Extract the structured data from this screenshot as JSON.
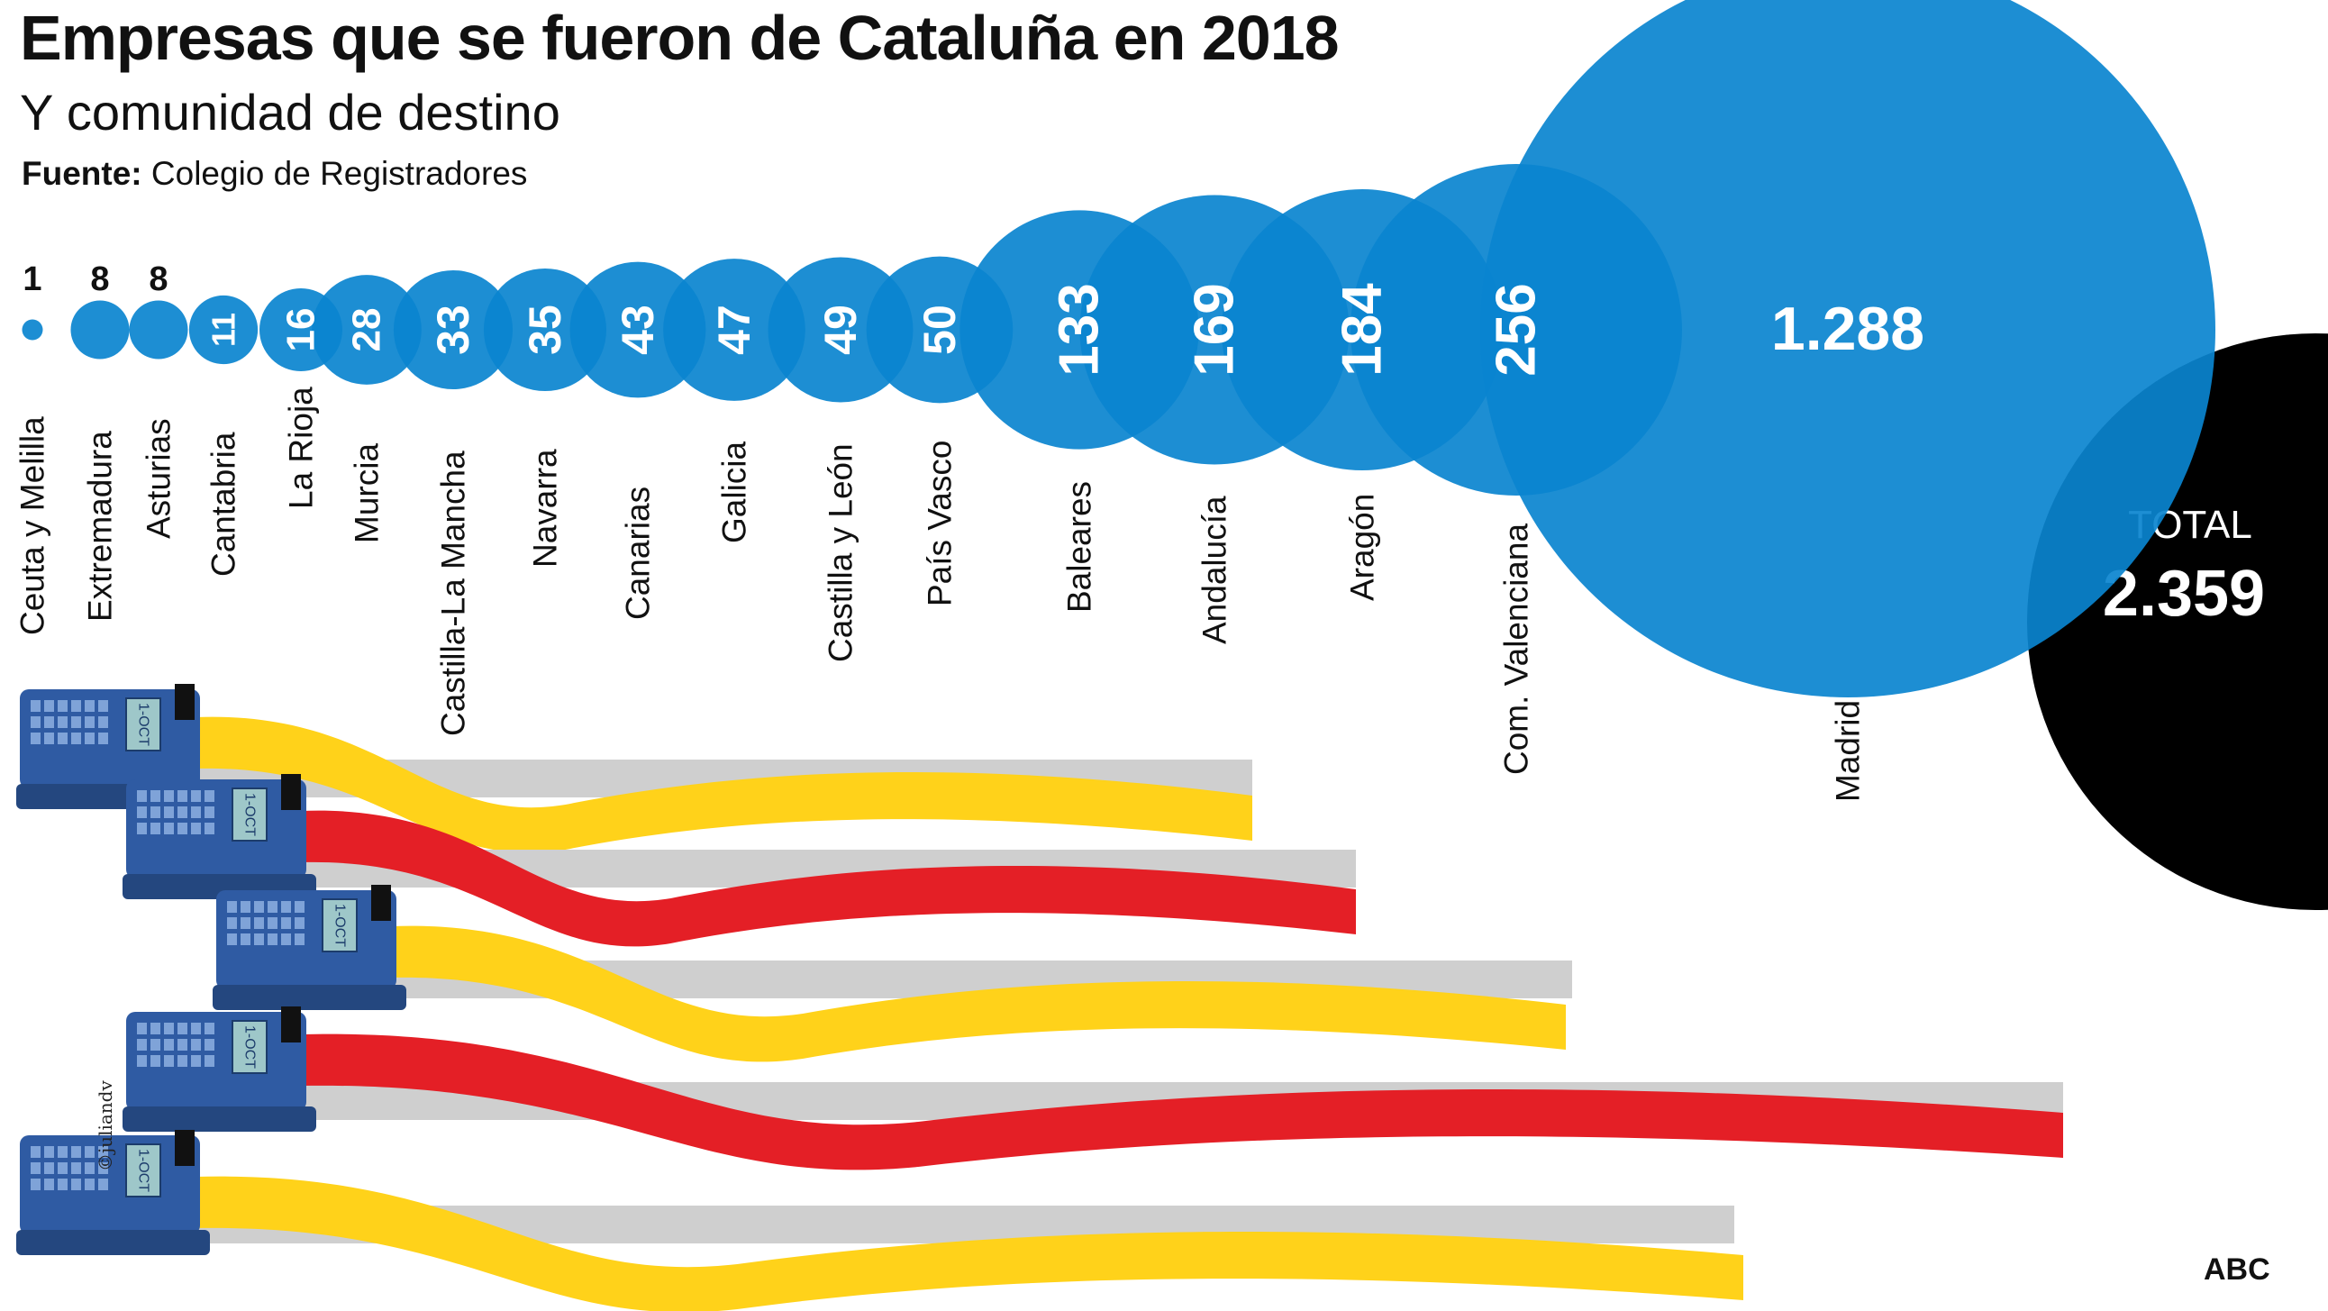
{
  "header": {
    "title": "Empresas que se fueron de Cataluña en 2018",
    "subtitle": "Y comunidad de destino",
    "source_label": "Fuente:",
    "source_text": "Colegio de Registradores"
  },
  "chart_data": {
    "type": "bubble",
    "categories": [
      "Ceuta y Melilla",
      "Extremadura",
      "Asturias",
      "Cantabria",
      "La Rioja",
      "Murcia",
      "Castilla-La Mancha",
      "Navarra",
      "Canarias",
      "Galicia",
      "Castilla y León",
      "País Vasco",
      "Baleares",
      "Andalucía",
      "Aragón",
      "Com. Valenciana",
      "Madrid"
    ],
    "value_labels": [
      "1",
      "8",
      "8",
      "11",
      "16",
      "28",
      "33",
      "35",
      "43",
      "47",
      "49",
      "50",
      "133",
      "169",
      "184",
      "256",
      "1.288"
    ],
    "values": [
      1,
      8,
      8,
      11,
      16,
      28,
      33,
      35,
      43,
      47,
      49,
      50,
      133,
      169,
      184,
      256,
      1288
    ],
    "total_label": "TOTAL",
    "total_value_label": "2.359",
    "total_value": 2359,
    "colors": {
      "bubble": "#0a84cf",
      "bubble_overlap": "#0a6eb0",
      "total": "#000000",
      "label_text": "#ffffff"
    }
  },
  "illustration": {
    "credit": "©juliandv",
    "machine_screen": "1-OCT",
    "ribbon_colors": [
      "#ffd21a",
      "#e41f26",
      "#ffd21a",
      "#e41f26",
      "#ffd21a"
    ],
    "icon": "ballot-box-ribbon-icon"
  },
  "footer": {
    "brand": "ABC"
  }
}
